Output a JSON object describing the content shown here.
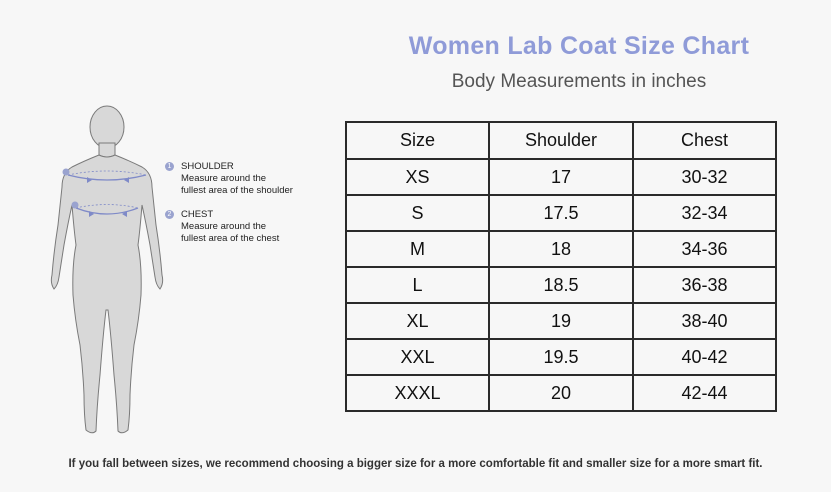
{
  "title": "Women Lab Coat Size Chart",
  "subtitle": "Body Measurements in inches",
  "table": {
    "headers": [
      "Size",
      "Shoulder",
      "Chest"
    ],
    "rows": [
      [
        "XS",
        "17",
        "30-32"
      ],
      [
        "S",
        "17.5",
        "32-34"
      ],
      [
        "M",
        "18",
        "34-36"
      ],
      [
        "L",
        "18.5",
        "36-38"
      ],
      [
        "XL",
        "19",
        "38-40"
      ],
      [
        "XXL",
        "19.5",
        "40-42"
      ],
      [
        "XXXL",
        "20",
        "42-44"
      ]
    ]
  },
  "legend": [
    {
      "num": "1",
      "label": "SHOULDER",
      "line1": "Measure around the",
      "line2": "fullest area of the shoulder"
    },
    {
      "num": "2",
      "label": "CHEST",
      "line1": "Measure around the",
      "line2": "fullest area of the chest"
    }
  ],
  "footnote": "If you fall between sizes, we recommend choosing a bigger size for a more comfortable fit and smaller size for a  more smart fit.",
  "colors": {
    "accent": "#8f9bd8",
    "figure": "#d6d6d6",
    "measure_line": "#7f8ac8"
  }
}
